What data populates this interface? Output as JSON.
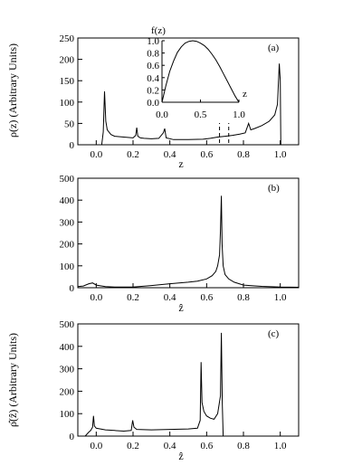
{
  "chart_data": [
    {
      "id": "a",
      "type": "line",
      "panel_label": "(a)",
      "xlabel": "z",
      "ylabel": "ρ(z) (Arbitrary Units)",
      "xlim": [
        -0.1,
        1.1
      ],
      "ylim": [
        0,
        250
      ],
      "xticks": [
        -0.0,
        0.2,
        0.4,
        0.6,
        0.8,
        1.0
      ],
      "xtick_labels": [
        "0.0",
        "0.2",
        "0.4",
        "0.6",
        "0.8",
        "1.0"
      ],
      "yticks": [
        0,
        50,
        100,
        150,
        200,
        250
      ],
      "ytick_labels": [
        "0",
        "50",
        "100",
        "150",
        "200",
        "250"
      ],
      "series": [
        {
          "x": [
            -0.1,
            0.0,
            0.03,
            0.038,
            0.045,
            0.052,
            0.06,
            0.08,
            0.1,
            0.15,
            0.2,
            0.215,
            0.22,
            0.226,
            0.24,
            0.26,
            0.3,
            0.34,
            0.365,
            0.372,
            0.38,
            0.42,
            0.5,
            0.58,
            0.62,
            0.66,
            0.7,
            0.74,
            0.78,
            0.81,
            0.828,
            0.84,
            0.86,
            0.9,
            0.94,
            0.97,
            0.985,
            0.995,
            1.0,
            1.003,
            1.1
          ],
          "y": [
            0,
            0,
            0,
            30,
            125,
            55,
            35,
            24,
            20,
            18,
            16,
            22,
            40,
            20,
            16,
            15,
            14,
            15,
            28,
            38,
            16,
            12,
            12,
            13,
            15,
            18,
            20,
            22,
            25,
            28,
            50,
            35,
            38,
            45,
            55,
            70,
            95,
            190,
            150,
            0,
            0
          ]
        }
      ],
      "dashed_markers_x": [
        0.67,
        0.72
      ],
      "inset": {
        "type": "line",
        "ylabel": "f(z)",
        "xlabel": "z",
        "xlim": [
          0,
          1
        ],
        "ylim": [
          0,
          1
        ],
        "xticks": [
          0.0,
          0.5,
          1.0
        ],
        "xtick_labels": [
          "0.0",
          "0.5",
          "1.0"
        ],
        "yticks": [
          0.0,
          0.2,
          0.4,
          0.6,
          0.8,
          1.0
        ],
        "ytick_labels": [
          "0.0",
          "0.2",
          "0.4",
          "0.6",
          "0.8",
          "1.0"
        ],
        "series": [
          {
            "x": [
              0.0,
              0.05,
              0.1,
              0.15,
              0.2,
              0.25,
              0.3,
              0.35,
              0.4,
              0.45,
              0.5,
              0.55,
              0.6,
              0.65,
              0.7,
              0.75,
              0.8,
              0.85,
              0.9,
              0.95,
              1.0
            ],
            "y": [
              0.0,
              0.27,
              0.5,
              0.67,
              0.81,
              0.9,
              0.96,
              0.99,
              1.0,
              0.99,
              0.96,
              0.92,
              0.86,
              0.78,
              0.69,
              0.58,
              0.46,
              0.34,
              0.22,
              0.1,
              0.0
            ]
          }
        ]
      }
    },
    {
      "id": "b",
      "type": "line",
      "panel_label": "(b)",
      "xlabel": "ẑ",
      "ylabel": "",
      "xlim": [
        -0.1,
        1.1
      ],
      "ylim": [
        0,
        500
      ],
      "xticks": [
        0.0,
        0.2,
        0.4,
        0.6,
        0.8,
        1.0
      ],
      "xtick_labels": [
        "0.0",
        "0.2",
        "0.4",
        "0.6",
        "0.8",
        "1.0"
      ],
      "yticks": [
        0,
        100,
        200,
        300,
        400,
        500
      ],
      "ytick_labels": [
        "0",
        "100",
        "200",
        "300",
        "400",
        "500"
      ],
      "series": [
        {
          "x": [
            -0.1,
            -0.07,
            -0.04,
            -0.02,
            0.0,
            0.05,
            0.1,
            0.2,
            0.3,
            0.4,
            0.5,
            0.55,
            0.6,
            0.63,
            0.65,
            0.66,
            0.67,
            0.675,
            0.68,
            0.684,
            0.69,
            0.7,
            0.72,
            0.75,
            0.8,
            0.9,
            1.0,
            1.1
          ],
          "y": [
            5,
            8,
            18,
            22,
            12,
            5,
            3,
            3,
            10,
            18,
            25,
            30,
            40,
            55,
            75,
            100,
            150,
            260,
            420,
            200,
            100,
            60,
            40,
            25,
            12,
            6,
            3,
            2
          ]
        }
      ]
    },
    {
      "id": "c",
      "type": "line",
      "panel_label": "(c)",
      "xlabel": "ẑ",
      "ylabel": "ρ̂(ẑ) (Arbitrary Units)",
      "xlim": [
        -0.1,
        1.1
      ],
      "ylim": [
        0,
        500
      ],
      "xticks": [
        0.0,
        0.2,
        0.4,
        0.6,
        0.8,
        1.0
      ],
      "xtick_labels": [
        "0.0",
        "0.2",
        "0.4",
        "0.6",
        "0.8",
        "1.0"
      ],
      "yticks": [
        0,
        100,
        200,
        300,
        400,
        500
      ],
      "ytick_labels": [
        "0",
        "100",
        "200",
        "300",
        "400",
        "500"
      ],
      "series": [
        {
          "x": [
            -0.1,
            -0.06,
            -0.04,
            -0.03,
            -0.02,
            -0.015,
            -0.01,
            0.0,
            0.05,
            0.1,
            0.15,
            0.19,
            0.198,
            0.205,
            0.22,
            0.3,
            0.4,
            0.5,
            0.55,
            0.565,
            0.57,
            0.575,
            0.585,
            0.6,
            0.62,
            0.64,
            0.66,
            0.675,
            0.68,
            0.685,
            0.69,
            0.8,
            1.1
          ],
          "y": [
            0,
            0,
            18,
            25,
            40,
            90,
            45,
            35,
            28,
            25,
            22,
            25,
            70,
            40,
            30,
            28,
            30,
            32,
            35,
            70,
            330,
            150,
            110,
            90,
            80,
            75,
            100,
            180,
            460,
            150,
            0,
            0,
            0
          ]
        }
      ]
    }
  ]
}
